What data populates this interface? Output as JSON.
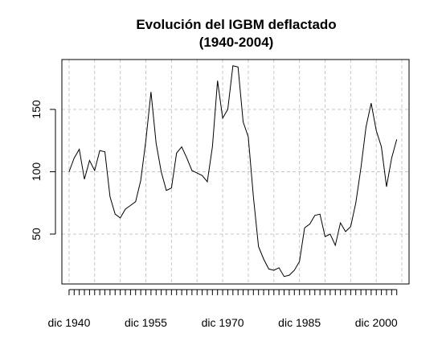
{
  "chart_data": {
    "type": "line",
    "title": "Evolución del IGBM deflactado",
    "subtitle": "(1940-2004)",
    "xlabel": "",
    "ylabel": "",
    "grid": true,
    "legend": "none",
    "xlim": [
      1938.6,
      2006.4
    ],
    "ylim": [
      10,
      190
    ],
    "x_tick_labels": [
      "dic 1940",
      "dic 1955",
      "dic 1970",
      "dic 1985",
      "dic 2000"
    ],
    "x_tick_years": [
      1940,
      1955,
      1970,
      1985,
      2000
    ],
    "y_ticks": [
      50,
      100,
      150
    ],
    "line_color": "#000000",
    "series": [
      {
        "x": [
          1940,
          1941,
          1942,
          1943,
          1944,
          1945,
          1946,
          1947,
          1948,
          1949,
          1950,
          1951,
          1952,
          1953,
          1954,
          1955,
          1956,
          1957,
          1958,
          1959,
          1960,
          1961,
          1962,
          1963,
          1964,
          1965,
          1966,
          1967,
          1968,
          1969,
          1970,
          1971,
          1972,
          1973,
          1974,
          1975,
          1976,
          1977,
          1978,
          1979,
          1980,
          1981,
          1982,
          1983,
          1984,
          1985,
          1986,
          1987,
          1988,
          1989,
          1990,
          1991,
          1992,
          1993,
          1994,
          1995,
          1996,
          1997,
          1998,
          1999,
          2000,
          2001,
          2002,
          2003,
          2004
        ],
        "values": [
          100,
          111,
          118,
          94,
          109,
          101,
          117,
          116,
          80,
          66,
          63,
          70,
          73,
          76,
          93,
          125,
          164,
          123,
          100,
          85,
          87,
          115,
          120,
          111,
          101,
          99,
          97,
          92,
          120,
          173,
          143,
          150,
          185,
          184,
          140,
          128,
          80,
          40,
          30,
          22,
          21,
          23,
          16,
          17,
          21,
          28,
          55,
          58,
          65,
          66,
          48,
          50,
          41,
          59,
          52,
          56,
          75,
          103,
          136,
          155,
          133,
          120,
          88,
          111,
          126
        ]
      }
    ]
  }
}
